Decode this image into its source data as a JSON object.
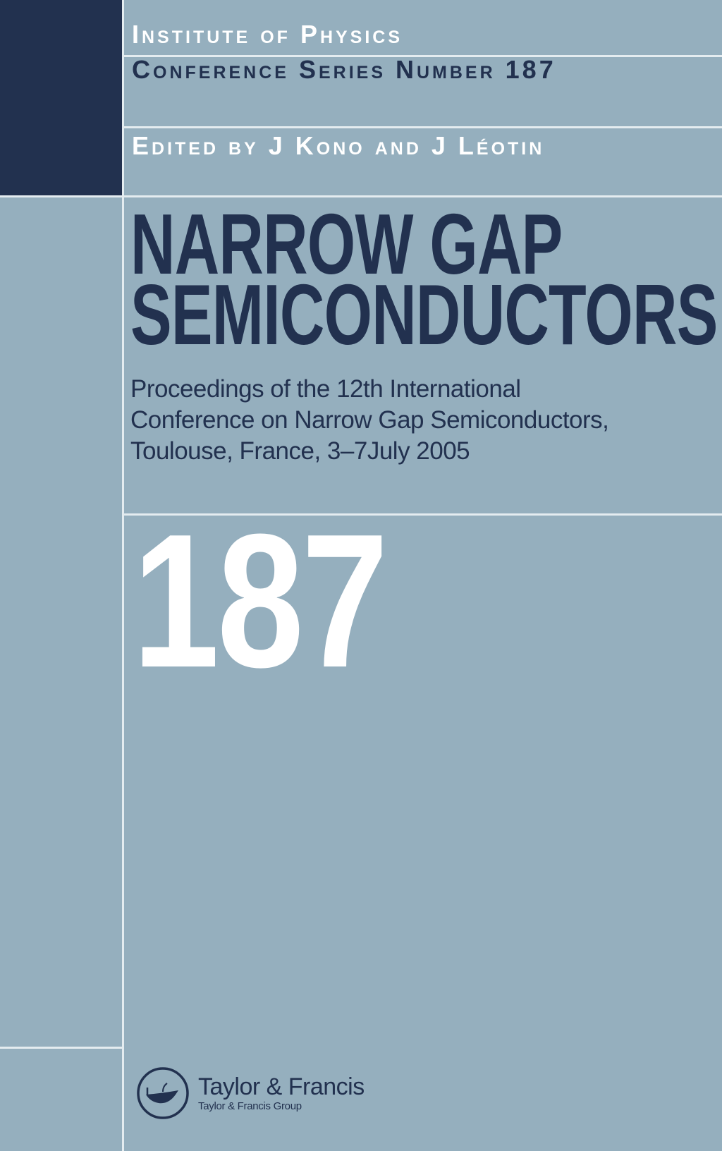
{
  "series_header": {
    "publisher": "Institute of Physics",
    "series": "Conference Series Number 187",
    "editors": "Edited by J Kono and J Léotin"
  },
  "title": {
    "line1": "NARROW GAP",
    "line2": "SEMICONDUCTORS"
  },
  "subtitle": {
    "line1": "Proceedings of the 12th International",
    "line2": "Conference on Narrow Gap Semiconductors,",
    "line3": "Toulouse, France, 3–7July 2005"
  },
  "volume_number": "187",
  "publisher_logo": {
    "icon": "lamp-icon",
    "name": "Taylor & Francis",
    "group": "Taylor & Francis Group"
  },
  "colors": {
    "background": "#95afbe",
    "navy": "#22314f",
    "rule": "#e4ecf0"
  }
}
